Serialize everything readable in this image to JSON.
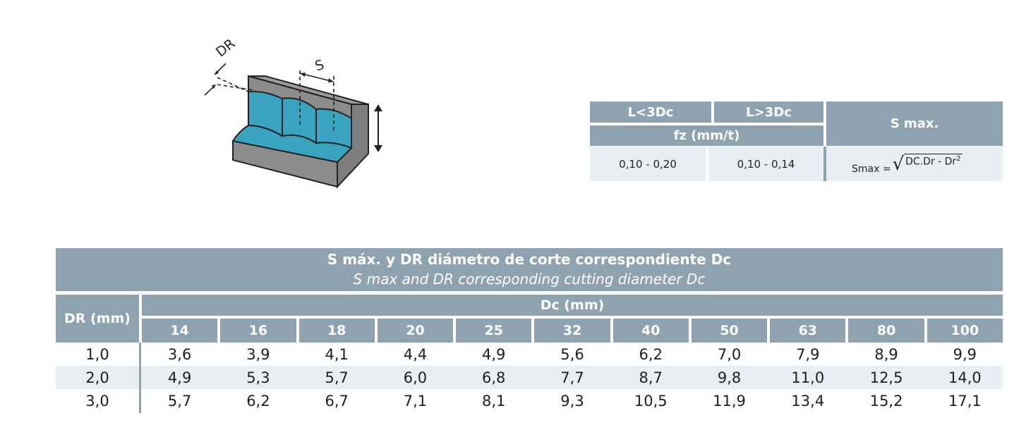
{
  "diagram": {
    "label_dr": "DR",
    "label_s": "S"
  },
  "formula_table": {
    "col1_header": "L<3Dc",
    "col2_header": "L>3Dc",
    "sub_header": "fz (mm/t)",
    "smax_header": "S max.",
    "col1_value": "0,10 - 0,20",
    "col2_value": "0,10 - 0,14",
    "formula_prefix": "Smax =",
    "formula_radicand": "DC.Dr - Dr",
    "formula_exponent": "2"
  },
  "main_table": {
    "title_es": "S máx. y DR diámetro de corte correspondiente Dc",
    "title_en": "S max and DR corresponding cutting diameter Dc",
    "row_header": "DR (mm)",
    "col_group_header": "Dc (mm)",
    "columns": [
      "14",
      "16",
      "18",
      "20",
      "25",
      "32",
      "40",
      "50",
      "63",
      "80",
      "100"
    ],
    "rows": [
      {
        "dr": "1,0",
        "values": [
          "3,6",
          "3,9",
          "4,1",
          "4,4",
          "4,9",
          "5,6",
          "6,2",
          "7,0",
          "7,9",
          "8,9",
          "9,9"
        ]
      },
      {
        "dr": "2,0",
        "values": [
          "4,9",
          "5,3",
          "5,7",
          "6,0",
          "6,8",
          "7,7",
          "8,7",
          "9,8",
          "11,0",
          "12,5",
          "14,0"
        ]
      },
      {
        "dr": "3,0",
        "values": [
          "5,7",
          "6,2",
          "6,7",
          "7,1",
          "8,1",
          "9,3",
          "10,5",
          "11,9",
          "13,4",
          "15,2",
          "17,1"
        ]
      }
    ]
  },
  "colors": {
    "header": "#8fa2b0",
    "alt_row": "#e9eef2",
    "part_blue": "#3aa3bf",
    "part_grey": "#8c8c8c"
  }
}
